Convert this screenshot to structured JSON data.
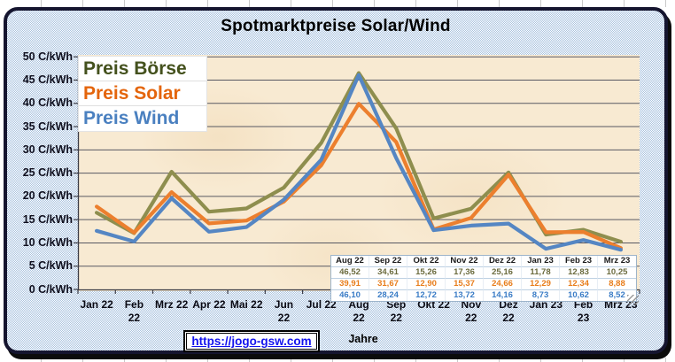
{
  "title": "Spotmarktpreise Solar/Wind",
  "colors": {
    "boerse_line": "#8e8e4e",
    "solar_line": "#ec7f2e",
    "wind_line": "#5586c3",
    "boerse_legend": "#44511d",
    "solar_legend": "#e4650c",
    "wind_legend": "#4a80c0",
    "boerse_table": "#6b6b3e",
    "solar_table": "#e87d1b",
    "wind_table": "#3a7cc6",
    "plot_bg": "#f8ead2",
    "grid": "#585862",
    "frame_border": "#15152f",
    "pattern_blue": "#a8c2df",
    "link_blue": "#1313ee"
  },
  "legend": {
    "items": [
      {
        "label": "Preis Börse",
        "color_key": "boerse_legend"
      },
      {
        "label": "Preis Solar",
        "color_key": "solar_legend"
      },
      {
        "label": "Preis Wind",
        "color_key": "wind_legend"
      }
    ]
  },
  "y_axis": {
    "unit": "C/kWh",
    "tick_labels": [
      "50 C/kWh",
      "45 C/kWh",
      "40 C/kWh",
      "35 C/kWh",
      "30 C/kWh",
      "25 C/kWh",
      "20 C/kWh",
      "15 C/kWh",
      "10 C/kWh",
      "5 C/kWh",
      "0 C/kWh"
    ],
    "tick_values": [
      50,
      45,
      40,
      35,
      30,
      25,
      20,
      15,
      10,
      5,
      0
    ]
  },
  "x_axis": {
    "title": "Jahre",
    "labels": [
      "Jan 22",
      "Feb\n22",
      "Mrz 22",
      "Apr 22",
      "Mai 22",
      "Jun\n22",
      "Jul 22",
      "Aug\n22",
      "Sep\n22",
      "Okt 22",
      "Nov\n22",
      "Dez\n22",
      "Jan 23",
      "Feb\n23",
      "Mrz 23"
    ]
  },
  "chart_data": {
    "type": "line",
    "title": "Spotmarktpreise Solar/Wind",
    "categories": [
      "Jan 22",
      "Feb 22",
      "Mrz 22",
      "Apr 22",
      "Mai 22",
      "Jun 22",
      "Jul 22",
      "Aug 22",
      "Sep 22",
      "Okt 22",
      "Nov 22",
      "Dez 22",
      "Jan 23",
      "Feb 23",
      "Mrz 23"
    ],
    "series": [
      {
        "name": "Preis Börse",
        "color": "#8e8e4e",
        "values": [
          16.5,
          12.1,
          25.3,
          16.7,
          17.4,
          21.9,
          31.5,
          46.52,
          34.61,
          15.26,
          17.36,
          25.16,
          11.78,
          12.83,
          10.25
        ]
      },
      {
        "name": "Preis Solar",
        "color": "#ec7f2e",
        "values": [
          17.8,
          12.2,
          20.9,
          14.2,
          14.8,
          18.9,
          26.7,
          39.91,
          31.67,
          12.9,
          15.37,
          24.66,
          12.29,
          12.34,
          8.88
        ]
      },
      {
        "name": "Preis Wind",
        "color": "#5586c3",
        "values": [
          12.6,
          10.3,
          19.6,
          12.4,
          13.4,
          19.3,
          27.9,
          46.1,
          28.24,
          12.72,
          13.72,
          14.16,
          8.73,
          10.62,
          8.52
        ]
      }
    ],
    "ylabel": "C/kWh",
    "xlabel": "Jahre",
    "ylim": [
      0,
      50
    ],
    "ytick_step": 5,
    "grid": true,
    "legend_position": "top-left"
  },
  "data_table": {
    "headers": [
      "Aug 22",
      "Sep 22",
      "Okt 22",
      "Nov 22",
      "Dez 22",
      "Jan 23",
      "Feb 23",
      "Mrz 23"
    ],
    "rows": [
      {
        "series": "Preis Börse",
        "color_key": "boerse_table",
        "values": [
          "46,52",
          "34,61",
          "15,26",
          "17,36",
          "25,16",
          "11,78",
          "12,83",
          "10,25"
        ]
      },
      {
        "series": "Preis Solar",
        "color_key": "solar_table",
        "values": [
          "39,91",
          "31,67",
          "12,90",
          "15,37",
          "24,66",
          "12,29",
          "12,34",
          "8,88"
        ]
      },
      {
        "series": "Preis Wind",
        "color_key": "wind_table",
        "values": [
          "46,10",
          "28,24",
          "12,72",
          "13,72",
          "14,16",
          "8,73",
          "10,62",
          "8,52"
        ]
      }
    ]
  },
  "footer": {
    "link_text": "https://jogo-gsw.com"
  }
}
